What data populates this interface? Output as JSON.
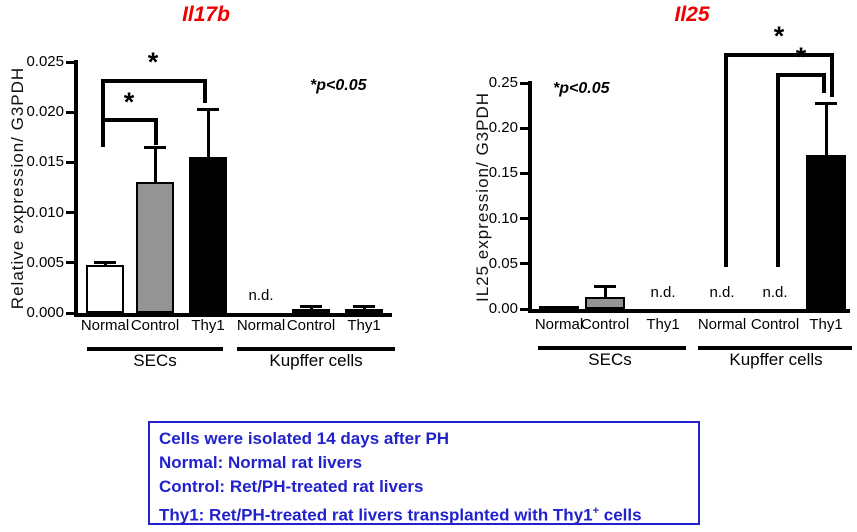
{
  "chart_data": [
    {
      "type": "bar",
      "title": "Il17b",
      "title_color": "#ee0000",
      "ylabel": "Relative expression/ G3PDH",
      "xlabel": "",
      "ylim": [
        0,
        0.025
      ],
      "grid": false,
      "legend": "none",
      "pnote": "*p<0.05",
      "nd_text": "n.d.",
      "yticks": [
        {
          "label": "0.025",
          "v": 0.025
        },
        {
          "label": "0.020",
          "v": 0.02
        },
        {
          "label": "0.015",
          "v": 0.015
        },
        {
          "label": "0.010",
          "v": 0.01
        },
        {
          "label": "0.005",
          "v": 0.005
        },
        {
          "label": "0.000",
          "v": 0.0
        }
      ],
      "groups": [
        {
          "label": "SECs"
        },
        {
          "label": "Kupffer cells"
        }
      ],
      "bars": [
        {
          "group": "SECs",
          "label": "Normal",
          "value": 0.0048,
          "error": 0.0003,
          "fill": "#ffffff"
        },
        {
          "group": "SECs",
          "label": "Control",
          "value": 0.013,
          "error": 0.0035,
          "fill": "#949494"
        },
        {
          "group": "SECs",
          "label": "Thy1",
          "value": 0.0155,
          "error": 0.0048,
          "fill": "#000000"
        },
        {
          "group": "Kupffer cells",
          "label": "Normal",
          "nd": true
        },
        {
          "group": "Kupffer cells",
          "label": "Control",
          "value": 0.0004,
          "error": 0.0003,
          "fill": "#000000"
        },
        {
          "group": "Kupffer cells",
          "label": "Thy1",
          "value": 0.0004,
          "error": 0.0003,
          "fill": "#000000"
        }
      ],
      "significance": [
        {
          "star": "*",
          "between": [
            "SECs Normal",
            "SECs Control"
          ]
        },
        {
          "star": "*",
          "between": [
            "SECs Normal",
            "SECs Thy1"
          ]
        }
      ]
    },
    {
      "type": "bar",
      "title": "Il25",
      "title_color": "#ee0000",
      "ylabel": "IL25 expression/ G3PDH",
      "xlabel": "",
      "ylim": [
        0,
        0.25
      ],
      "grid": false,
      "legend": "none",
      "pnote": "*p<0.05",
      "nd_text": "n.d.",
      "yticks": [
        {
          "label": "0.25",
          "v": 0.25
        },
        {
          "label": "0.20",
          "v": 0.2
        },
        {
          "label": "0.15",
          "v": 0.15
        },
        {
          "label": "0.10",
          "v": 0.1
        },
        {
          "label": "0.05",
          "v": 0.05
        },
        {
          "label": "0.00",
          "v": 0.0
        }
      ],
      "groups": [
        {
          "label": "SECs"
        },
        {
          "label": "Kupffer cells"
        }
      ],
      "bars": [
        {
          "group": "SECs",
          "label": "Normal",
          "value": 0.003,
          "fill": "#000000"
        },
        {
          "group": "SECs",
          "label": "Control",
          "value": 0.013,
          "error": 0.012,
          "fill": "#949494"
        },
        {
          "group": "SECs",
          "label": "Thy1",
          "nd": true
        },
        {
          "group": "Kupffer cells",
          "label": "Normal",
          "nd": true
        },
        {
          "group": "Kupffer cells",
          "label": "Control",
          "nd": true
        },
        {
          "group": "Kupffer cells",
          "label": "Thy1",
          "value": 0.17,
          "error": 0.058,
          "fill": "#000000"
        }
      ],
      "significance": [
        {
          "star": "*",
          "between": [
            "Kupffer cells Normal",
            "Kupffer cells Thy1"
          ]
        },
        {
          "star": "*",
          "between": [
            "Kupffer cells Control",
            "Kupffer cells Thy1"
          ]
        }
      ]
    }
  ],
  "note": {
    "text_color": "#2222cc",
    "border_color": "#2222cc",
    "lines": [
      "Cells were isolated 14 days after PH",
      "Normal: Normal rat livers",
      "Control: Ret/PH-treated rat livers"
    ],
    "line4": {
      "pre": "Thy1: Ret/PH-treated rat livers transplanted with Thy1",
      "sup": "+",
      "post": " cells"
    }
  }
}
